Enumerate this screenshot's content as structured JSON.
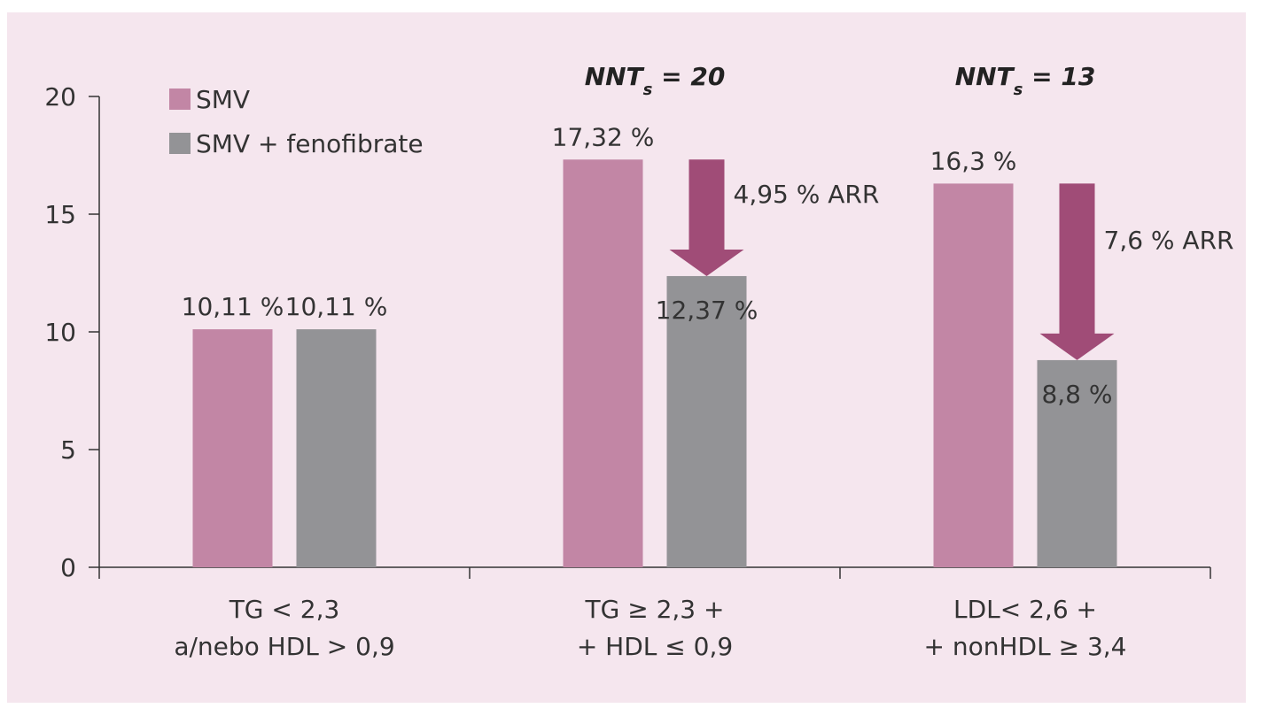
{
  "chart_data": {
    "type": "bar",
    "ylim": [
      0,
      20
    ],
    "yticks": [
      "0",
      "5",
      "10",
      "15",
      "20"
    ],
    "grid": false,
    "legend_placement": "top-left",
    "categories": [
      [
        "TG < 2,3",
        "a/nebo HDL > 0,9"
      ],
      [
        "TG ≥ 2,3 +",
        "+ HDL ≤ 0,9"
      ],
      [
        "LDL< 2,6 +",
        "+ nonHDL ≥ 3,4"
      ]
    ],
    "series": [
      {
        "name": "SMV",
        "color": "#c286a5",
        "values": [
          10.11,
          17.32,
          16.3
        ],
        "labels": [
          "10,11 %",
          "17,32 %",
          "16,3 %"
        ]
      },
      {
        "name": "SMV + fenofibrate",
        "color": "#939396",
        "values": [
          10.11,
          12.37,
          8.8
        ],
        "labels": [
          "10,11 %",
          "12,37 %",
          "8,8 %"
        ]
      }
    ],
    "annotations": [
      {
        "group": 1,
        "nnt_prefix": "NNT",
        "nnt_sub": "s",
        "nnt_suffix": " = 20",
        "arr": "4,95 % ARR"
      },
      {
        "group": 2,
        "nnt_prefix": "NNT",
        "nnt_sub": "s",
        "nnt_suffix": " = 13",
        "arr": "7,6 % ARR"
      }
    ],
    "arrow_color": "#a04c77"
  }
}
